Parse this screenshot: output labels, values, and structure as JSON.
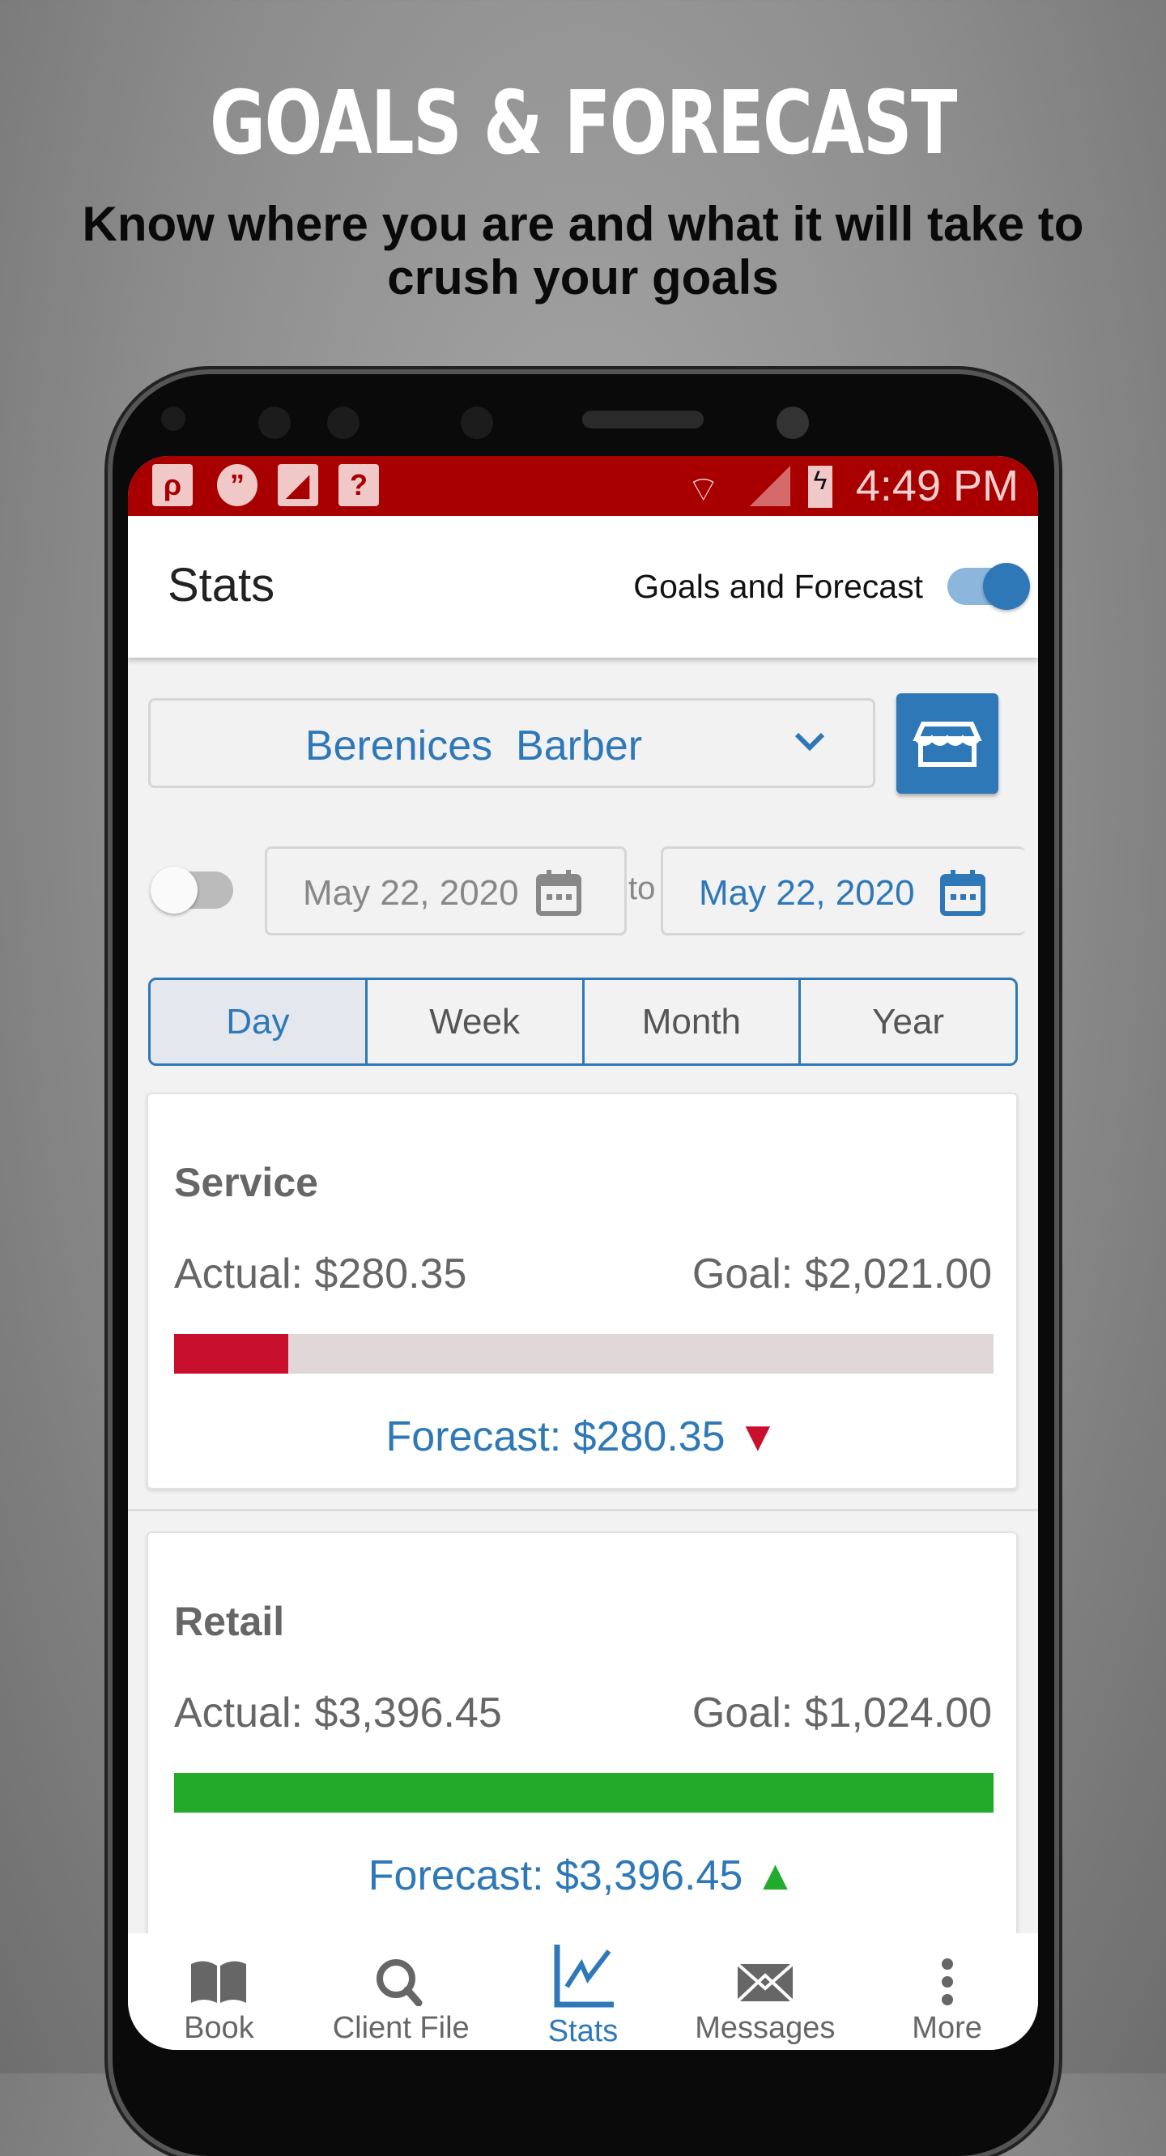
{
  "promo": {
    "headline": "GOALS & FORECAST",
    "subtitle": "Know where you are and what it will take to crush your goals"
  },
  "status_bar": {
    "time": "4:49 PM",
    "color": "#a80000"
  },
  "header": {
    "title": "Stats",
    "goals_toggle_label": "Goals and Forecast",
    "goals_toggle_on": true
  },
  "staff_select": {
    "value": "Berenices  Barber"
  },
  "date_range": {
    "range_toggle_on": false,
    "from": "May 22, 2020",
    "to_label": "to",
    "to": "May 22, 2020"
  },
  "period_tabs": [
    {
      "label": "Day",
      "selected": true
    },
    {
      "label": "Week"
    },
    {
      "label": "Month"
    },
    {
      "label": "Year"
    }
  ],
  "cards": [
    {
      "title": "Service",
      "actual": "Actual: $280.35",
      "goal": "Goal: $2,021.00",
      "progress_percent": 13.9,
      "bar_color": "#c8102e",
      "forecast": "Forecast: $280.35",
      "trend": "down",
      "trend_color": "#c8102e"
    },
    {
      "title": "Retail",
      "actual": "Actual: $3,396.45",
      "goal": "Goal: $1,024.00",
      "progress_percent": 100,
      "bar_color": "#22aa2a",
      "forecast": "Forecast: $3,396.45",
      "trend": "up",
      "trend_color": "#22aa2a"
    }
  ],
  "nav": [
    {
      "label": "Book",
      "icon": "book-icon"
    },
    {
      "label": "Client File",
      "icon": "search-icon"
    },
    {
      "label": "Stats",
      "icon": "chart-icon",
      "active": true
    },
    {
      "label": "Messages",
      "icon": "envelope-icon"
    },
    {
      "label": "More",
      "icon": "more-vertical-icon"
    }
  ],
  "accent": "#2f78b8"
}
